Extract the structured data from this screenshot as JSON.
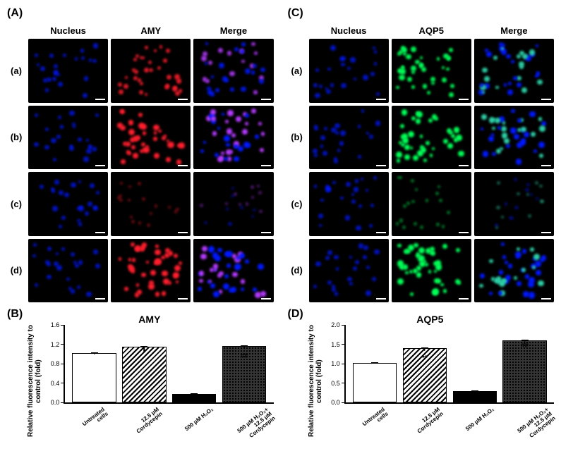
{
  "panels": {
    "A": {
      "label": "(A)",
      "headers": [
        "Nucleus",
        "AMY",
        "Merge"
      ],
      "rows": [
        "(a)",
        "(b)",
        "(c)",
        "(d)"
      ],
      "colors": {
        "nucleus": "#0018ff",
        "stain": "#ff1e2d",
        "merge_blend": "#b53aff",
        "background": "#000000"
      },
      "intensity": [
        0.7,
        0.85,
        0.18,
        0.95
      ]
    },
    "C": {
      "label": "(C)",
      "headers": [
        "Nucleus",
        "AQP5",
        "Merge"
      ],
      "rows": [
        "(a)",
        "(b)",
        "(c)",
        "(d)"
      ],
      "colors": {
        "nucleus": "#0018ff",
        "stain": "#00ff57",
        "merge_blend": "#2dd0a8",
        "background": "#000000"
      },
      "intensity": [
        0.8,
        0.85,
        0.22,
        0.95
      ]
    }
  },
  "charts": {
    "B": {
      "label": "(B)",
      "title": "AMY",
      "ylabel": "Relative fluorescence\nintensity to control (fold)",
      "ylim": [
        0,
        1.6
      ],
      "yticks": [
        0.0,
        0.4,
        0.8,
        1.2,
        1.6
      ],
      "categories": [
        "Untreated\ncells",
        "12.5 μM\nCordycepin",
        "500 μM H₂O₂",
        "500 μM H₂O₂+\n12.5 μM Cordycepin"
      ],
      "values": [
        1.0,
        1.13,
        0.17,
        1.14
      ],
      "errors": [
        0.02,
        0.1,
        0.03,
        0.02
      ],
      "fills": [
        "open",
        "hatch",
        "solid",
        "dots"
      ],
      "bar_colors": {
        "open": "#ffffff",
        "solid": "#000000"
      },
      "sig": [
        "",
        "",
        "**",
        "##"
      ]
    },
    "D": {
      "label": "(D)",
      "title": "AQP5",
      "ylabel": "Relative fluorescence\nintensity to control (fold)",
      "ylim": [
        0,
        2.0
      ],
      "yticks": [
        0.0,
        0.5,
        1.0,
        1.5,
        2.0
      ],
      "categories": [
        "Untreated\ncells",
        "12.5 μM\nCordycepin",
        "500 μM H₂O₂",
        "500 μM H₂O₂+\n12.5 μM Cordycepin"
      ],
      "values": [
        1.0,
        1.37,
        0.28,
        1.57
      ],
      "errors": [
        0.02,
        0.06,
        0.04,
        0.08
      ],
      "fills": [
        "open",
        "hatch",
        "solid",
        "dots"
      ],
      "bar_colors": {
        "open": "#ffffff",
        "solid": "#000000"
      },
      "sig": [
        "",
        "**",
        "**",
        "##"
      ]
    }
  },
  "style": {
    "font_family": "Arial",
    "label_fontsize": 13,
    "title_fontsize": 14,
    "axis_fontsize": 9
  }
}
